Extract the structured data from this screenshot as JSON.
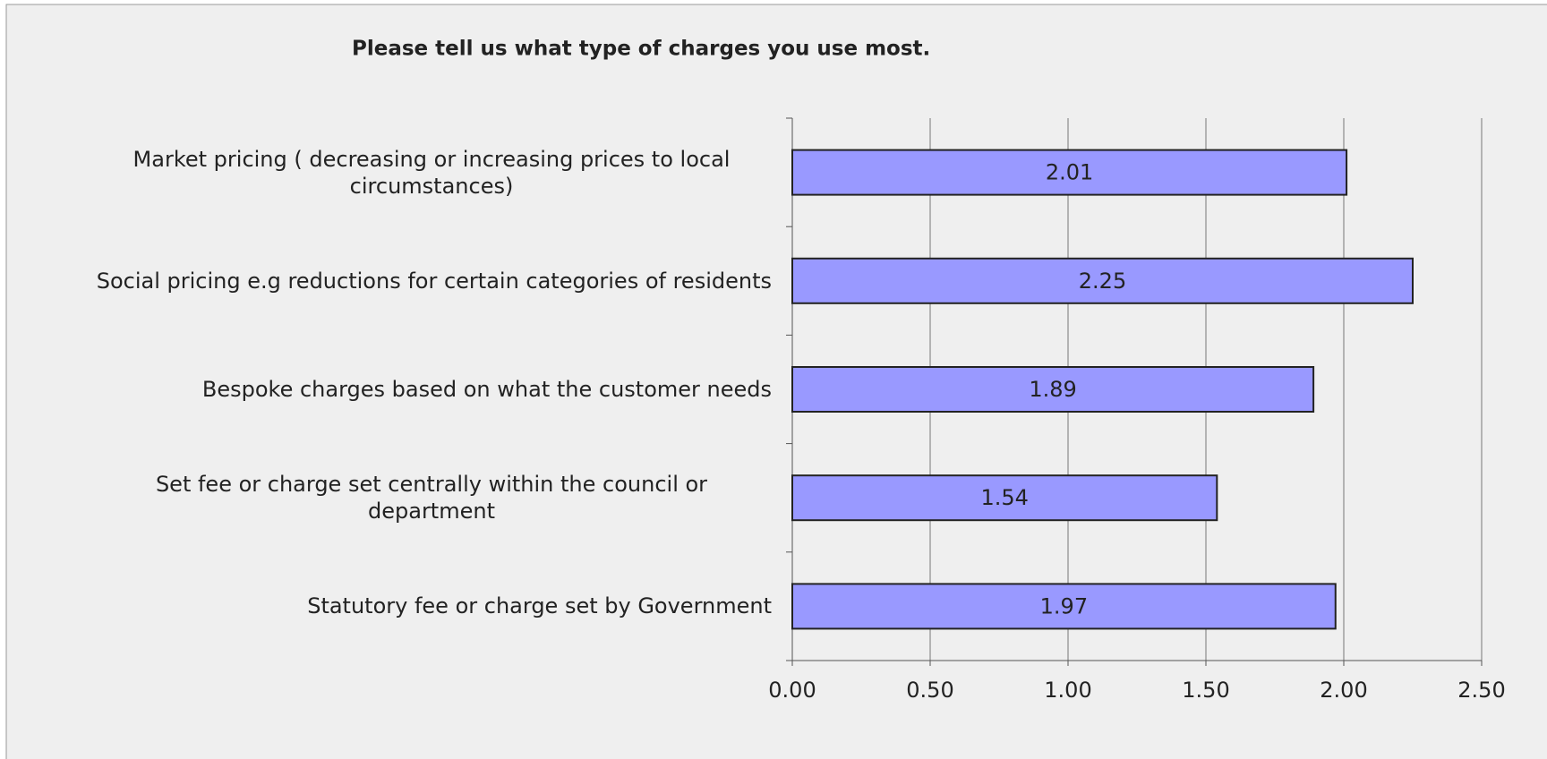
{
  "chart_data": {
    "type": "bar",
    "orientation": "horizontal",
    "title": "Please tell us what type of charges you use most.",
    "categories": [
      "Market pricing ( decreasing or increasing prices to local circumstances)",
      "Social pricing e.g reductions for certain categories of residents",
      "Bespoke charges based on what the customer needs",
      "Set fee or charge set centrally within the council or department",
      "Statutory fee or charge set by Government"
    ],
    "values": [
      2.01,
      2.25,
      1.89,
      1.54,
      1.97
    ],
    "color": "#9999ff",
    "xlim": [
      0,
      2.5
    ],
    "xticks": [
      {
        "value": 0,
        "label": "0.00"
      },
      {
        "value": 0.5,
        "label": "0.50"
      },
      {
        "value": 1,
        "label": "1.00"
      },
      {
        "value": 1.5,
        "label": "1.50"
      },
      {
        "value": 2,
        "label": "2.00"
      },
      {
        "value": 2.5,
        "label": "2.50"
      }
    ],
    "grid": true
  }
}
